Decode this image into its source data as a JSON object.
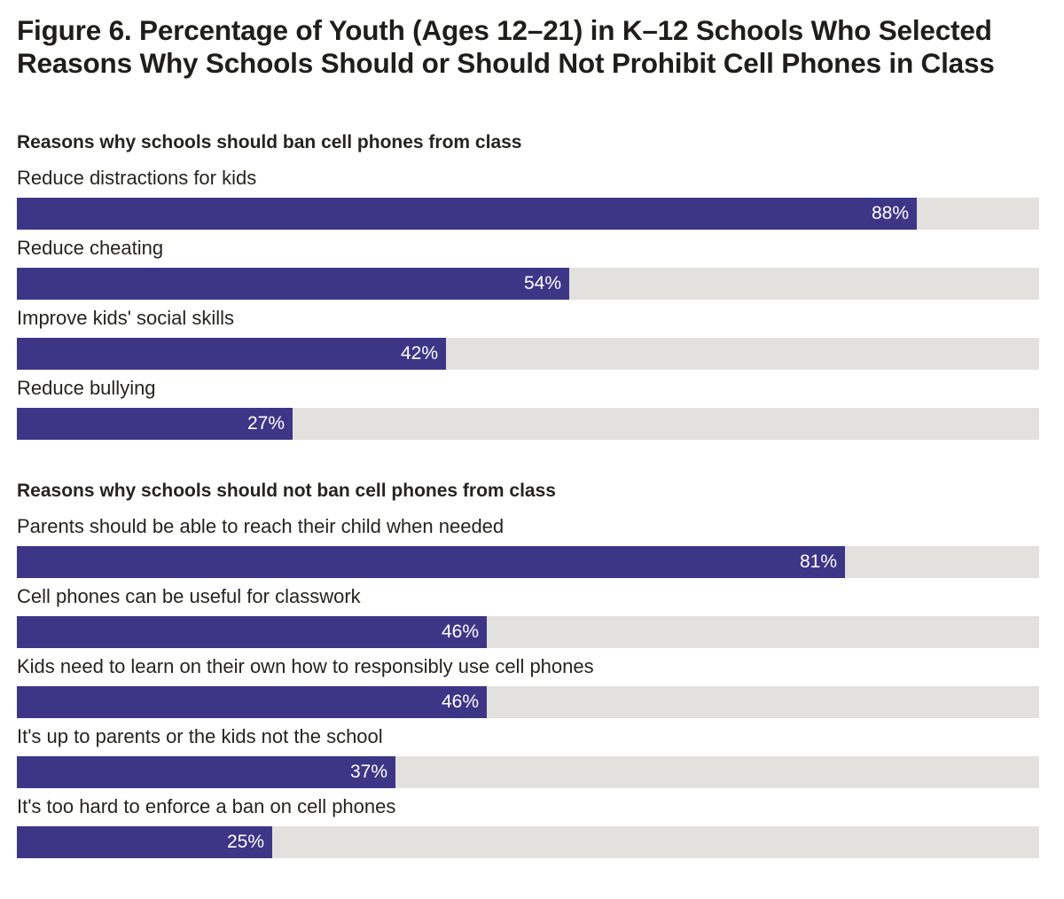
{
  "figure": {
    "title_line1": "Figure 6. Percentage of Youth (Ages 12–21) in K–12 Schools Who Selected",
    "title_line2": "Reasons Why Schools Should or Should Not Prohibit Cell Phones in Class"
  },
  "colors": {
    "bar": "#3d3687",
    "track": "#e3e1de",
    "text": "#26241f",
    "value_text": "#ffffff"
  },
  "chart_data": {
    "type": "bar",
    "orientation": "horizontal",
    "title": "Figure 6. Percentage of Youth (Ages 12–21) in K–12 Schools Who Selected Reasons Why Schools Should or Should Not Prohibit Cell Phones in Class",
    "xlim": [
      0,
      100
    ],
    "unit": "%",
    "grid": false,
    "groups": [
      {
        "heading": "Reasons why schools should ban cell phones from class",
        "items": [
          {
            "label": "Reduce distractions for kids",
            "value": 88,
            "value_label": "88%"
          },
          {
            "label": "Reduce cheating",
            "value": 54,
            "value_label": "54%"
          },
          {
            "label": "Improve kids' social skills",
            "value": 42,
            "value_label": "42%"
          },
          {
            "label": "Reduce bullying",
            "value": 27,
            "value_label": "27%"
          }
        ]
      },
      {
        "heading": "Reasons why schools should not ban cell phones from class",
        "items": [
          {
            "label": "Parents should be able to reach their child when needed",
            "value": 81,
            "value_label": "81%"
          },
          {
            "label": "Cell phones can be useful for classwork",
            "value": 46,
            "value_label": "46%"
          },
          {
            "label": "Kids need to learn on their own how to responsibly use cell phones",
            "value": 46,
            "value_label": "46%"
          },
          {
            "label": "It's up to parents or the kids not the school",
            "value": 37,
            "value_label": "37%"
          },
          {
            "label": "It's too hard to enforce a ban on cell phones",
            "value": 25,
            "value_label": "25%"
          }
        ]
      }
    ]
  }
}
